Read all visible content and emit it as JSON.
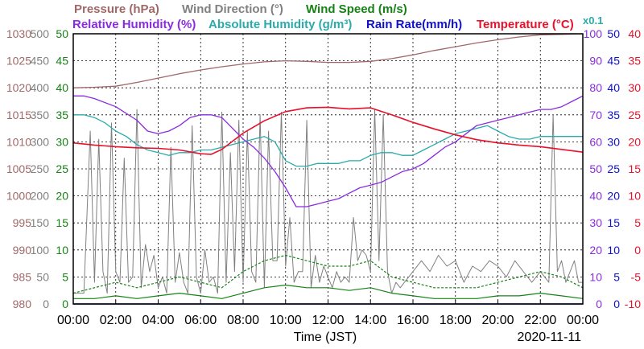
{
  "chart_data": {
    "type": "line",
    "legend": {
      "row1": [
        {
          "text": "Pressure (hPa)",
          "color": "#a06868"
        },
        {
          "text": "Wind Direction (°)",
          "color": "#808080"
        },
        {
          "text": "Wind Speed (m/s)",
          "color": "#168216"
        }
      ],
      "row2": [
        {
          "text": "Relative Humidity (%)",
          "color": "#8a2be2"
        },
        {
          "text": "Absolute Humidity (g/m³)",
          "color": "#2aaaaa"
        },
        {
          "text": "Rain Rate(mm/h)",
          "color": "#1010d0"
        },
        {
          "text": "Temperature (°C)",
          "color": "#e8102a"
        }
      ],
      "multiplier": "x0.1"
    },
    "xlabel": "Time (JST)",
    "date": "2020-11-11",
    "x_ticks": [
      "00:00",
      "02:00",
      "04:00",
      "06:00",
      "08:00",
      "10:00",
      "12:00",
      "14:00",
      "16:00",
      "18:00",
      "20:00",
      "22:00",
      "00:00"
    ],
    "axes": {
      "pressure": {
        "color": "#a06868",
        "ticks": [
          "1030",
          "1025",
          "1020",
          "1015",
          "1010",
          "1005",
          "1000",
          "995",
          "990",
          "985",
          "980"
        ],
        "range": [
          980,
          1030
        ]
      },
      "wind_direction": {
        "color": "#808080",
        "ticks": [
          "500",
          "450",
          "400",
          "350",
          "300",
          "250",
          "200",
          "150",
          "100",
          "50",
          "0"
        ],
        "range": [
          0,
          500
        ]
      },
      "wind_speed": {
        "color": "#168216",
        "ticks": [
          "50",
          "45",
          "40",
          "35",
          "30",
          "25",
          "20",
          "15",
          "10",
          "5",
          "0"
        ],
        "range": [
          0,
          50
        ]
      },
      "humidity": {
        "color": "#8a2be2",
        "ticks": [
          "100",
          "90",
          "80",
          "70",
          "60",
          "50",
          "40",
          "30",
          "20",
          "10",
          "0"
        ],
        "range": [
          0,
          100
        ]
      },
      "rain": {
        "color": "#1010d0",
        "ticks": [
          "50",
          "45",
          "40",
          "35",
          "30",
          "25",
          "20",
          "15",
          "10",
          "5",
          "0"
        ],
        "range": [
          0,
          50
        ]
      },
      "temperature": {
        "color": "#e8102a",
        "ticks": [
          "40",
          "35",
          "30",
          "25",
          "20",
          "15",
          "10",
          "5",
          "0",
          "-5",
          "-10"
        ],
        "range": [
          -10,
          40
        ]
      }
    },
    "x_range_hours": [
      0,
      24
    ],
    "series": {
      "pressure": {
        "color": "#a06868",
        "x": [
          0,
          1,
          2,
          3,
          4,
          5,
          6,
          7,
          8,
          9,
          10,
          11,
          12,
          13,
          14,
          15,
          16,
          17,
          18,
          19,
          20,
          21,
          22,
          23,
          24
        ],
        "y": [
          1020.0,
          1020.1,
          1020.3,
          1021.0,
          1021.8,
          1022.6,
          1023.3,
          1023.9,
          1024.4,
          1024.8,
          1025.0,
          1024.9,
          1024.7,
          1024.7,
          1024.9,
          1025.4,
          1026.1,
          1026.9,
          1027.6,
          1028.3,
          1028.9,
          1029.4,
          1029.8,
          1029.9,
          1030.0
        ]
      },
      "temperature": {
        "color": "#e8102a",
        "x": [
          0,
          1,
          2,
          3,
          4,
          5,
          6,
          6.5,
          7,
          8,
          9,
          10,
          11,
          12,
          13,
          14,
          15,
          16,
          17,
          18,
          19,
          20,
          21,
          22,
          23,
          24
        ],
        "y": [
          19.8,
          19.4,
          19.1,
          18.9,
          18.8,
          18.5,
          17.8,
          17.7,
          18.6,
          21.6,
          23.9,
          25.6,
          26.3,
          26.4,
          26.1,
          26.3,
          25.0,
          23.6,
          22.4,
          21.3,
          20.4,
          19.8,
          19.4,
          19.1,
          18.6,
          18.1
        ]
      },
      "relative_humidity": {
        "color": "#8a2be2",
        "x": [
          0,
          0.5,
          1,
          2,
          3,
          3.5,
          4,
          4.5,
          5,
          5.5,
          6,
          6.5,
          7,
          7.5,
          8,
          8.5,
          9,
          9.5,
          10,
          10.5,
          11,
          11.5,
          12,
          12.5,
          13,
          13.5,
          14,
          14.5,
          15,
          15.5,
          16,
          16.5,
          17,
          17.5,
          18,
          18.5,
          19,
          19.5,
          20,
          20.5,
          21,
          21.5,
          22,
          22.5,
          23,
          23.5,
          24
        ],
        "y": [
          77,
          77,
          76,
          73,
          68,
          64,
          63,
          64,
          66,
          69,
          70,
          70,
          69,
          65,
          61,
          58,
          54,
          49,
          43,
          36,
          36,
          37,
          38,
          39,
          41,
          43,
          44,
          45,
          47,
          49,
          50,
          52,
          55,
          58,
          60,
          63,
          66,
          67,
          68,
          69,
          70,
          71,
          72,
          72,
          73,
          75,
          77
        ]
      },
      "absolute_humidity": {
        "color": "#2aaaaa",
        "x": [
          0,
          0.5,
          1,
          1.5,
          2,
          2.5,
          3,
          3.5,
          4,
          4.5,
          5,
          5.5,
          6,
          6.5,
          7,
          7.5,
          8,
          8.5,
          9,
          9.5,
          10,
          10.5,
          11,
          11.5,
          12,
          12.5,
          13,
          13.5,
          14,
          14.5,
          15,
          15.5,
          16,
          16.5,
          17,
          17.5,
          18,
          18.5,
          19,
          19.5,
          20,
          20.5,
          21,
          21.5,
          22,
          22.5,
          23,
          23.5,
          24
        ],
        "y": [
          70,
          70,
          69,
          67,
          64,
          62,
          59,
          57,
          56,
          55,
          56,
          56,
          57,
          57,
          58,
          59,
          60,
          61,
          62,
          60,
          53,
          51,
          51,
          52,
          52,
          52,
          53,
          53,
          55,
          56,
          56,
          55,
          55,
          57,
          59,
          61,
          63,
          64,
          65,
          66,
          64,
          62,
          61,
          61,
          62,
          62,
          62,
          62,
          62
        ]
      },
      "wind_direction": {
        "color": "#808080",
        "x": [
          0,
          0.5,
          0.8,
          1.0,
          1.2,
          1.4,
          1.6,
          1.8,
          2.0,
          2.2,
          2.4,
          2.6,
          2.8,
          3.0,
          3.2,
          3.4,
          3.6,
          3.8,
          4.0,
          4.2,
          4.4,
          4.6,
          4.8,
          5.0,
          5.2,
          5.4,
          5.6,
          5.8,
          6.0,
          6.2,
          6.4,
          6.6,
          6.8,
          7.0,
          7.2,
          7.4,
          7.6,
          7.8,
          8.0,
          8.2,
          8.4,
          8.6,
          8.8,
          9.0,
          9.2,
          9.4,
          9.6,
          9.8,
          10.0,
          10.2,
          10.4,
          10.6,
          10.8,
          11.0,
          11.2,
          11.4,
          11.6,
          11.8,
          12.0,
          12.2,
          12.4,
          12.6,
          12.8,
          13.0,
          13.2,
          13.4,
          13.6,
          13.8,
          14.0,
          14.2,
          14.4,
          14.6,
          14.8,
          15.0,
          15.2,
          15.4,
          15.6,
          15.8,
          16.0,
          16.4,
          16.8,
          17.2,
          17.6,
          18.0,
          18.4,
          18.8,
          19.2,
          19.6,
          20.0,
          20.4,
          20.8,
          21.2,
          21.6,
          22.0,
          22.4,
          22.6,
          22.8,
          23.0,
          23.2,
          23.4,
          23.6,
          23.8,
          24
        ],
        "y": [
          20,
          20,
          320,
          40,
          305,
          60,
          20,
          335,
          60,
          40,
          270,
          40,
          50,
          360,
          30,
          110,
          60,
          90,
          30,
          50,
          20,
          290,
          40,
          95,
          40,
          20,
          330,
          50,
          20,
          100,
          40,
          50,
          20,
          355,
          40,
          280,
          60,
          340,
          40,
          320,
          60,
          40,
          350,
          30,
          320,
          80,
          80,
          355,
          70,
          160,
          40,
          60,
          60,
          340,
          30,
          90,
          40,
          70,
          50,
          30,
          60,
          40,
          50,
          40,
          160,
          80,
          100,
          90,
          60,
          360,
          80,
          350,
          60,
          20,
          40,
          30,
          40,
          50,
          60,
          80,
          60,
          90,
          70,
          80,
          40,
          70,
          60,
          80,
          70,
          50,
          80,
          60,
          40,
          60,
          40,
          350,
          60,
          80,
          40,
          60,
          80,
          40,
          40
        ]
      },
      "wind_speed": {
        "color": "#168216",
        "x": [
          0,
          1,
          2,
          3,
          4,
          5,
          6,
          7,
          8,
          9,
          10,
          11,
          12,
          13,
          14,
          15,
          16,
          17,
          18,
          19,
          20,
          21,
          22,
          23,
          24
        ],
        "y": [
          1,
          1,
          1.5,
          1,
          1.5,
          2,
          1.5,
          1,
          2,
          3,
          3.5,
          3,
          3,
          2.5,
          3,
          2,
          1.5,
          1,
          1,
          1,
          1.5,
          1.5,
          2,
          1.5,
          1
        ]
      },
      "wind_gust": {
        "color": "#168216",
        "x": [
          0,
          1,
          2,
          3,
          4,
          5,
          6,
          7,
          8,
          9,
          10,
          11,
          12,
          13,
          14,
          15,
          16,
          17,
          18,
          19,
          20,
          21,
          22,
          23,
          24
        ],
        "y": [
          2,
          3,
          4,
          3,
          4,
          5,
          4,
          3,
          6,
          8,
          9,
          8,
          7,
          7,
          8,
          5,
          4,
          3,
          3,
          3,
          4,
          5,
          6,
          5,
          3
        ]
      },
      "rain_rate": {
        "color": "#1010d0",
        "x": [
          0,
          24
        ],
        "y": [
          0,
          0
        ]
      }
    }
  }
}
